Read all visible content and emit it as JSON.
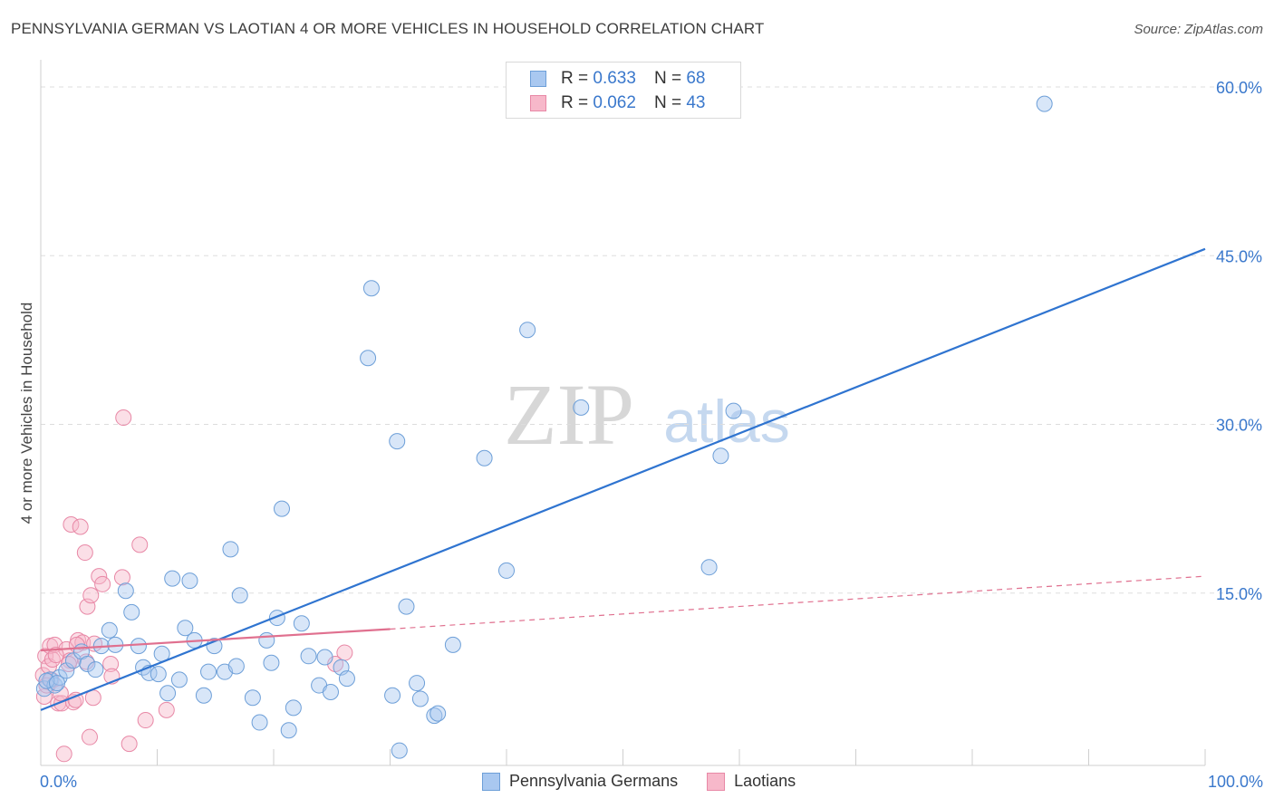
{
  "title": "PENNSYLVANIA GERMAN VS LAOTIAN 4 OR MORE VEHICLES IN HOUSEHOLD CORRELATION CHART",
  "source": "Source: ZipAtlas.com",
  "watermark": {
    "zip": "ZIP",
    "atlas": "atlas"
  },
  "legend_top": {
    "rows": [
      {
        "r_label": "R =",
        "r_value": "0.633",
        "n_label": "N =",
        "n_value": "68"
      },
      {
        "r_label": "R =",
        "r_value": "0.062",
        "n_label": "N =",
        "n_value": "43"
      }
    ]
  },
  "legend_bottom": {
    "items": [
      "Pennsylvania Germans",
      "Laotians"
    ]
  },
  "colors": {
    "blue_fill": "#a9c8f0",
    "blue_stroke": "#6d9fd8",
    "blue_line": "#2f74d0",
    "pink_fill": "#f7b8ca",
    "pink_stroke": "#e888a6",
    "pink_line": "#e0708f",
    "tick_label": "#3a78cc",
    "grid": "#dddddd"
  },
  "chart_data": {
    "type": "scatter",
    "title": "PENNSYLVANIA GERMAN VS LAOTIAN 4 OR MORE VEHICLES IN HOUSEHOLD CORRELATION CHART",
    "xlabel": "",
    "ylabel": "4 or more Vehicles in Household",
    "xlim": [
      0,
      100
    ],
    "ylim": [
      0,
      60
    ],
    "x_tick_labels": [
      "0.0%",
      "100.0%"
    ],
    "y_ticks": [
      15,
      30,
      45,
      60
    ],
    "y_tick_labels": [
      "15.0%",
      "30.0%",
      "45.0%",
      "60.0%"
    ],
    "grid": true,
    "legend_placement": "top-center",
    "series": [
      {
        "name": "Pennsylvania Germans",
        "points": [
          [
            0.3,
            6.5
          ],
          [
            0.8,
            7.3
          ],
          [
            1.2,
            6.8
          ],
          [
            1.6,
            7.5
          ],
          [
            2.2,
            8.1
          ],
          [
            2.8,
            9.0
          ],
          [
            3.5,
            9.8
          ],
          [
            4.0,
            8.7
          ],
          [
            4.7,
            8.2
          ],
          [
            5.2,
            10.3
          ],
          [
            5.9,
            11.7
          ],
          [
            6.4,
            10.4
          ],
          [
            7.3,
            15.2
          ],
          [
            7.8,
            13.3
          ],
          [
            8.4,
            10.3
          ],
          [
            8.8,
            8.4
          ],
          [
            9.3,
            7.9
          ],
          [
            10.1,
            7.8
          ],
          [
            10.4,
            9.6
          ],
          [
            10.9,
            6.1
          ],
          [
            11.3,
            16.3
          ],
          [
            11.9,
            7.3
          ],
          [
            12.4,
            11.9
          ],
          [
            12.8,
            16.1
          ],
          [
            13.2,
            10.8
          ],
          [
            14.0,
            5.9
          ],
          [
            14.4,
            8.0
          ],
          [
            14.9,
            10.3
          ],
          [
            15.8,
            8.0
          ],
          [
            16.3,
            18.9
          ],
          [
            16.8,
            8.5
          ],
          [
            17.1,
            14.8
          ],
          [
            18.2,
            5.7
          ],
          [
            18.8,
            3.5
          ],
          [
            19.4,
            10.8
          ],
          [
            19.8,
            8.8
          ],
          [
            20.3,
            12.8
          ],
          [
            20.7,
            22.5
          ],
          [
            21.3,
            2.8
          ],
          [
            21.7,
            4.8
          ],
          [
            22.4,
            12.3
          ],
          [
            23.0,
            9.4
          ],
          [
            23.9,
            6.8
          ],
          [
            24.4,
            9.3
          ],
          [
            24.9,
            6.2
          ],
          [
            25.8,
            8.4
          ],
          [
            26.3,
            7.4
          ],
          [
            28.1,
            35.9
          ],
          [
            28.4,
            42.1
          ],
          [
            30.2,
            5.9
          ],
          [
            30.6,
            28.5
          ],
          [
            30.8,
            1.0
          ],
          [
            31.4,
            13.8
          ],
          [
            32.3,
            7.0
          ],
          [
            32.6,
            5.6
          ],
          [
            33.8,
            4.1
          ],
          [
            34.1,
            4.3
          ],
          [
            35.4,
            10.4
          ],
          [
            38.1,
            27.0
          ],
          [
            40.0,
            17.0
          ],
          [
            41.8,
            38.4
          ],
          [
            46.4,
            31.5
          ],
          [
            57.4,
            17.3
          ],
          [
            58.4,
            27.2
          ],
          [
            59.5,
            31.2
          ],
          [
            86.2,
            58.5
          ],
          [
            0.5,
            7.2
          ],
          [
            1.4,
            7.0
          ]
        ],
        "trend": {
          "x": [
            0,
            100
          ],
          "y": [
            4.6,
            45.6
          ]
        }
      },
      {
        "name": "Laotians",
        "points": [
          [
            0.2,
            7.7
          ],
          [
            0.4,
            9.4
          ],
          [
            0.7,
            8.5
          ],
          [
            0.8,
            10.3
          ],
          [
            1.0,
            9.1
          ],
          [
            1.2,
            10.4
          ],
          [
            1.5,
            5.2
          ],
          [
            1.8,
            5.2
          ],
          [
            2.0,
            0.7
          ],
          [
            2.2,
            10.0
          ],
          [
            2.5,
            9.0
          ],
          [
            2.6,
            21.1
          ],
          [
            2.8,
            5.3
          ],
          [
            3.0,
            5.5
          ],
          [
            3.2,
            10.8
          ],
          [
            3.4,
            20.9
          ],
          [
            3.6,
            10.6
          ],
          [
            3.8,
            18.6
          ],
          [
            3.9,
            8.9
          ],
          [
            4.0,
            13.8
          ],
          [
            4.2,
            2.2
          ],
          [
            4.3,
            14.8
          ],
          [
            4.5,
            5.7
          ],
          [
            4.6,
            10.5
          ],
          [
            5.0,
            16.5
          ],
          [
            5.3,
            15.8
          ],
          [
            6.0,
            8.7
          ],
          [
            6.1,
            7.6
          ],
          [
            7.0,
            16.4
          ],
          [
            7.1,
            30.6
          ],
          [
            7.6,
            1.6
          ],
          [
            8.5,
            19.3
          ],
          [
            9.0,
            3.7
          ],
          [
            10.8,
            4.6
          ],
          [
            25.3,
            8.7
          ],
          [
            26.1,
            9.7
          ],
          [
            0.3,
            5.8
          ],
          [
            0.9,
            7.3
          ],
          [
            1.7,
            6.1
          ],
          [
            2.4,
            8.7
          ],
          [
            3.1,
            10.4
          ],
          [
            0.5,
            6.8
          ],
          [
            1.3,
            9.5
          ]
        ],
        "trend_solid": {
          "x": [
            0,
            30
          ],
          "y": [
            9.9,
            11.8
          ]
        },
        "trend_dashed": {
          "x": [
            30,
            100
          ],
          "y": [
            11.8,
            16.5
          ]
        }
      }
    ]
  }
}
